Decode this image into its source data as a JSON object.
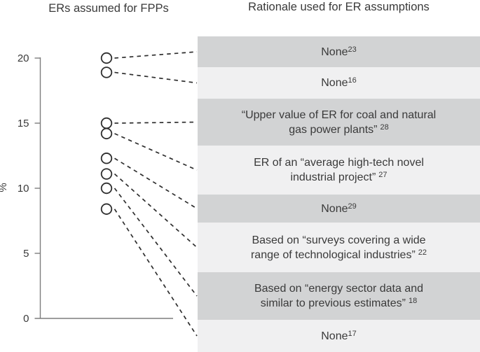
{
  "titles": {
    "left": "ERs assumed for FPPs",
    "right": "Rationale used for ER assumptions"
  },
  "chart_data": {
    "type": "scatter",
    "title": "ERs assumed for FPPs",
    "xlabel": "",
    "ylabel": "%",
    "ylim": [
      0,
      20
    ],
    "yticks": [
      0,
      5,
      10,
      15,
      20
    ],
    "grid": false,
    "marker": "open-circle",
    "values": [
      20,
      18.9,
      15,
      14.2,
      12.3,
      11.1,
      10,
      8.4
    ],
    "point_rationale_refs": [
      "23",
      "16",
      "28",
      "27",
      "29",
      "22",
      "18",
      "17"
    ],
    "connectors": "dashed line from each point, in descending value order, to rationale rows 1-8 of right panel"
  },
  "rationale": {
    "rows": [
      {
        "text": "None",
        "ref": "23",
        "shade": "dark"
      },
      {
        "text": "None",
        "ref": "16",
        "shade": "light"
      },
      {
        "line1": "“Upper value of ER for coal and natural",
        "line2": "gas power plants”",
        "ref": "28",
        "shade": "dark"
      },
      {
        "line1": "ER of an “average high-tech novel",
        "line2": "industrial project”",
        "ref": "27",
        "shade": "light"
      },
      {
        "text": "None",
        "ref": "29",
        "shade": "dark"
      },
      {
        "line1": "Based on “surveys covering a wide",
        "line2": "range of technological industries”",
        "ref": "22",
        "shade": "light"
      },
      {
        "line1": "Based on “energy sector data and",
        "line2": "similar to previous estimates”",
        "ref": "18",
        "shade": "dark"
      },
      {
        "text": "None",
        "ref": "17",
        "shade": "light"
      }
    ]
  },
  "colors": {
    "background": "#ffffff",
    "row_dark": "#d2d3d4",
    "row_light": "#f0f0f1",
    "text": "#3a3a3a",
    "axis": "#7d7d7d",
    "marker_stroke": "#2e2e2e",
    "connector": "#2e2e2e"
  }
}
